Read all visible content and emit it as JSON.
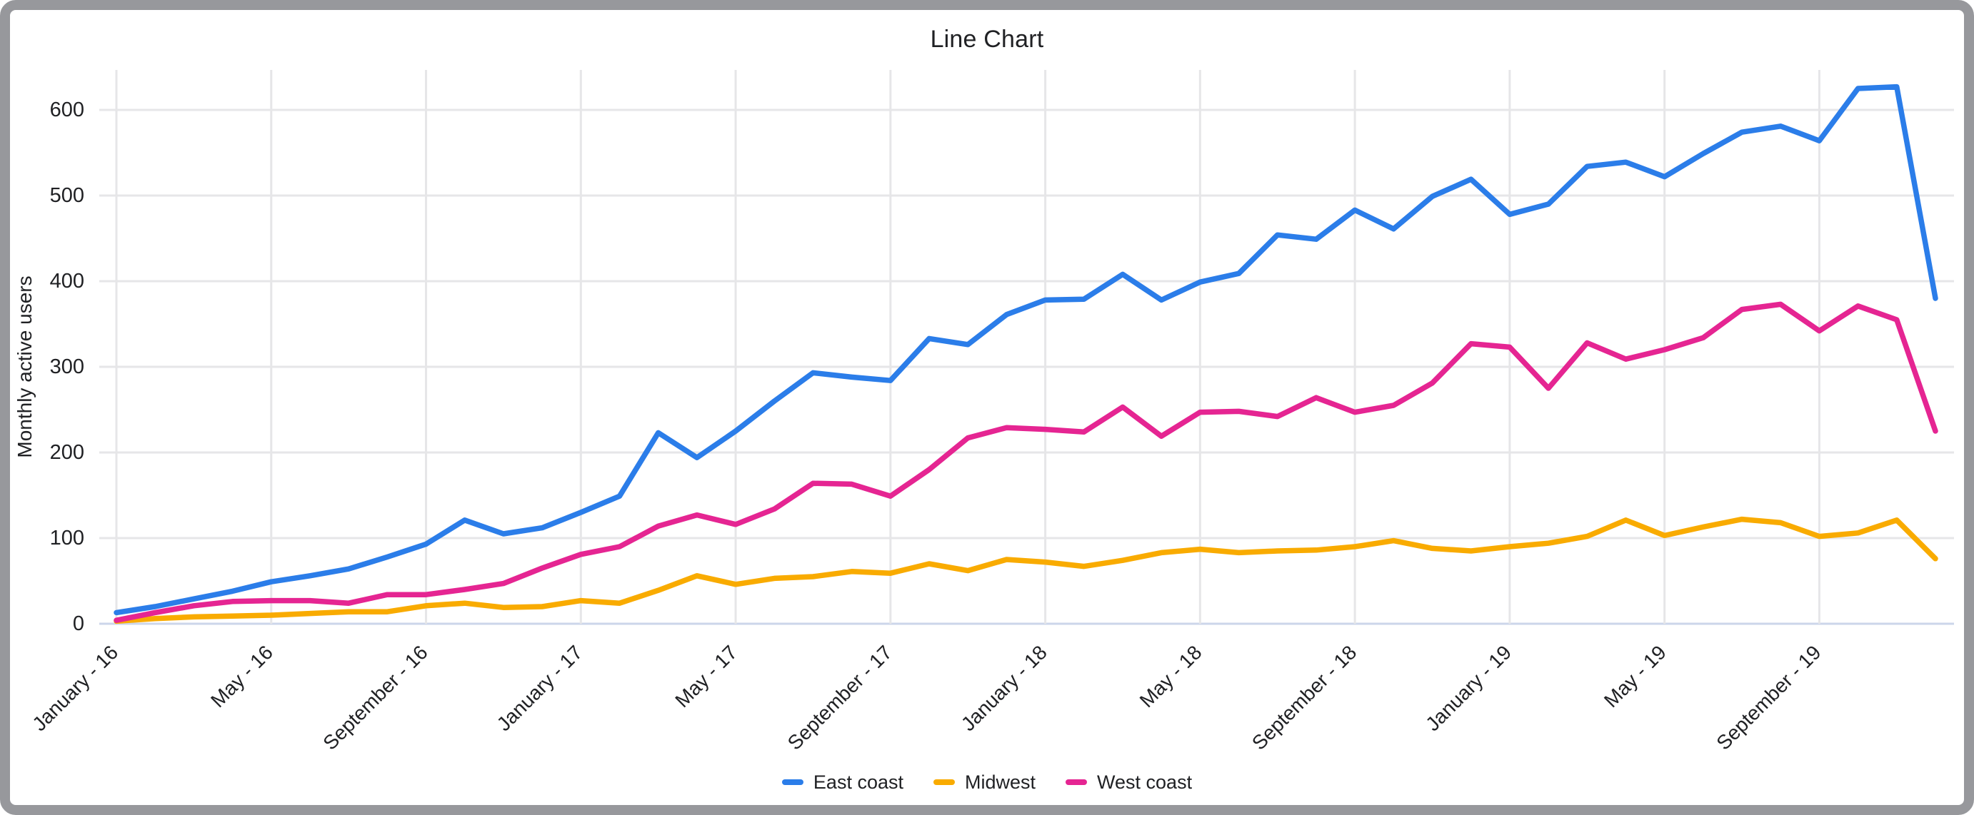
{
  "chart_data": {
    "type": "line",
    "title": "Line Chart",
    "xlabel": "",
    "ylabel": "Monthly active users",
    "ylim": [
      0,
      640
    ],
    "y_ticks": [
      0,
      100,
      200,
      300,
      400,
      500,
      600
    ],
    "grid": true,
    "legend_position": "bottom",
    "n_points": 48,
    "x_ticks": [
      {
        "index": 0,
        "label": "January - 16"
      },
      {
        "index": 4,
        "label": "May - 16"
      },
      {
        "index": 8,
        "label": "September - 16"
      },
      {
        "index": 12,
        "label": "January - 17"
      },
      {
        "index": 16,
        "label": "May - 17"
      },
      {
        "index": 20,
        "label": "September - 17"
      },
      {
        "index": 24,
        "label": "January - 18"
      },
      {
        "index": 28,
        "label": "May - 18"
      },
      {
        "index": 32,
        "label": "September - 18"
      },
      {
        "index": 36,
        "label": "January - 19"
      },
      {
        "index": 40,
        "label": "May - 19"
      },
      {
        "index": 44,
        "label": "September - 19"
      }
    ],
    "series": [
      {
        "name": "East coast",
        "color": "#2b7de9",
        "values": [
          13,
          20,
          29,
          38,
          49,
          56,
          64,
          78,
          93,
          121,
          105,
          112,
          130,
          149,
          223,
          194,
          225,
          260,
          293,
          288,
          284,
          333,
          326,
          361,
          378,
          379,
          408,
          378,
          399,
          409,
          454,
          449,
          483,
          461,
          499,
          519,
          478,
          490,
          534,
          539,
          522,
          549,
          574,
          581,
          564,
          625,
          627,
          380
        ]
      },
      {
        "name": "Midwest",
        "color": "#f9ab00",
        "values": [
          3,
          6,
          8,
          9,
          10,
          12,
          14,
          14,
          21,
          24,
          19,
          20,
          27,
          24,
          39,
          56,
          46,
          53,
          55,
          61,
          59,
          70,
          62,
          75,
          72,
          67,
          74,
          83,
          87,
          83,
          85,
          86,
          90,
          97,
          88,
          85,
          90,
          94,
          102,
          121,
          103,
          113,
          122,
          118,
          102,
          106,
          121,
          76
        ]
      },
      {
        "name": "West coast",
        "color": "#e52592",
        "values": [
          4,
          13,
          21,
          26,
          27,
          27,
          24,
          34,
          34,
          40,
          47,
          65,
          81,
          90,
          114,
          127,
          116,
          134,
          164,
          163,
          149,
          180,
          217,
          229,
          227,
          224,
          253,
          219,
          247,
          248,
          242,
          264,
          247,
          255,
          281,
          327,
          323,
          275,
          328,
          309,
          320,
          334,
          367,
          373,
          342,
          371,
          355,
          225
        ]
      }
    ],
    "colors": {
      "gridline": "#e6e6e8",
      "baseline": "#ccd6ea",
      "axis_line": "#e6e6e8",
      "tick_text": "#202124",
      "title_text": "#202124",
      "frame_border": "#97989c"
    }
  }
}
